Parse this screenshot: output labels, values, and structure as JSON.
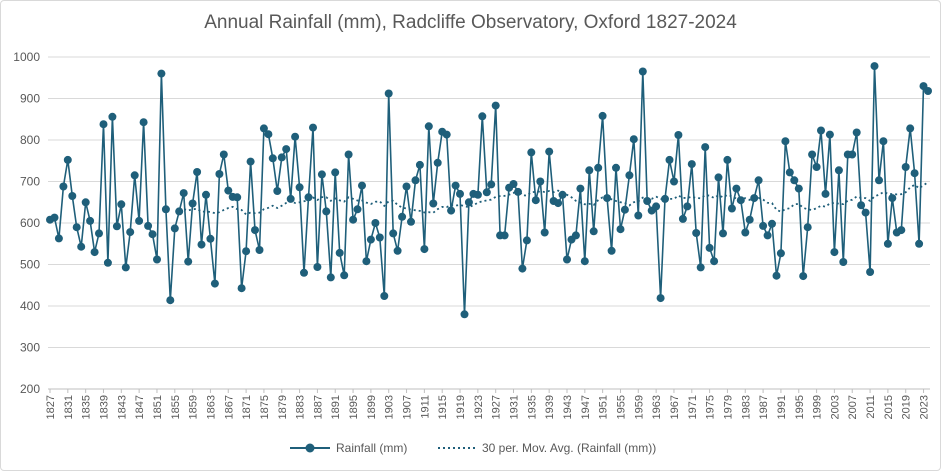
{
  "chart_data": {
    "type": "line",
    "title": "Annual Rainfall (mm), Radcliffe Observatory, Oxford 1827-2024",
    "xlabel": "",
    "ylabel": "",
    "ylim": [
      200,
      1000
    ],
    "yticks": [
      200,
      300,
      400,
      500,
      600,
      700,
      800,
      900,
      1000
    ],
    "x_range": [
      1827,
      2024
    ],
    "x_tick_labels": [
      1827,
      1831,
      1835,
      1839,
      1843,
      1847,
      1851,
      1855,
      1859,
      1863,
      1867,
      1871,
      1875,
      1879,
      1883,
      1887,
      1891,
      1895,
      1899,
      1903,
      1907,
      1911,
      1915,
      1919,
      1923,
      1927,
      1931,
      1935,
      1939,
      1943,
      1947,
      1951,
      1955,
      1959,
      1963,
      1967,
      1971,
      1975,
      1979,
      1983,
      1987,
      1991,
      1995,
      1999,
      2003,
      2007,
      2011,
      2015,
      2019,
      2023
    ],
    "grid": "horizontal",
    "legend_position": "bottom",
    "series": [
      {
        "name": "Rainfall (mm)",
        "color": "#1f5f7a",
        "style": "line-with-markers",
        "x_start": 1827,
        "values": [
          608,
          613,
          563,
          688,
          752,
          665,
          590,
          543,
          650,
          605,
          530,
          575,
          838,
          504,
          856,
          592,
          645,
          493,
          578,
          715,
          605,
          843,
          593,
          573,
          512,
          960,
          633,
          414,
          587,
          628,
          672,
          507,
          647,
          723,
          548,
          668,
          562,
          454,
          718,
          765,
          678,
          663,
          662,
          443,
          532,
          748,
          583,
          535,
          828,
          814,
          756,
          677,
          758,
          778,
          658,
          808,
          686,
          480,
          662,
          830,
          494,
          717,
          628,
          469,
          722,
          528,
          474,
          765,
          608,
          633,
          690,
          508,
          560,
          600,
          565,
          424,
          912,
          575,
          533,
          615,
          688,
          603,
          703,
          740,
          537,
          833,
          647,
          745,
          820,
          813,
          630,
          690,
          670,
          380,
          650,
          670,
          668,
          857,
          674,
          693,
          883,
          570,
          570,
          685,
          694,
          675,
          490,
          558,
          770,
          655,
          700,
          577,
          772,
          653,
          648,
          668,
          512,
          560,
          570,
          683,
          508,
          727,
          580,
          733,
          858,
          660,
          533,
          733,
          585,
          632,
          715,
          802,
          618,
          965,
          653,
          630,
          640,
          419,
          658,
          752,
          700,
          812,
          610,
          640,
          742,
          576,
          493,
          783,
          540,
          508,
          710,
          575,
          752,
          635,
          683,
          655,
          577,
          608,
          660,
          703,
          593,
          570,
          598,
          473,
          527,
          797,
          722,
          703,
          683,
          472,
          590,
          765,
          735,
          823,
          670,
          813,
          530,
          727,
          506,
          765,
          765,
          818,
          643,
          625,
          482,
          978,
          703,
          797,
          550,
          660,
          577,
          583,
          735,
          828,
          720,
          550,
          930,
          918
        ]
      },
      {
        "name": "30 per. Mov. Avg. (Rainfall (mm))",
        "color": "#1f5f7a",
        "style": "dotted"
      }
    ]
  }
}
